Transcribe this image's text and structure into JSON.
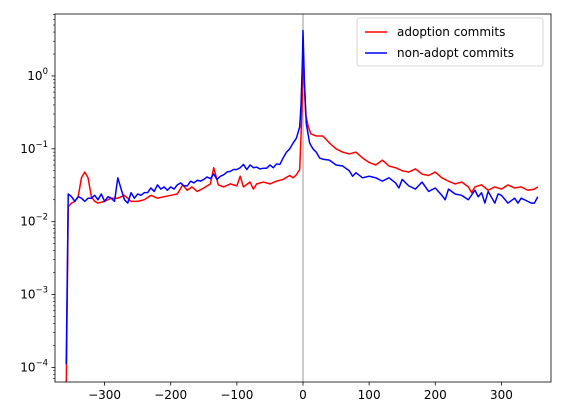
{
  "chart_data": {
    "type": "line",
    "title": "",
    "xlabel": "",
    "ylabel": "",
    "xlim": [
      -375,
      375
    ],
    "ylim_log10": [
      -4.2,
      0.85
    ],
    "yscale": "log",
    "grid": false,
    "legend_position": "top-right",
    "vertical_line_x": 0,
    "x_ticks": [
      -300,
      -200,
      -100,
      0,
      100,
      200,
      300
    ],
    "x_tick_labels": [
      "−300",
      "−200",
      "−100",
      "0",
      "100",
      "200",
      "300"
    ],
    "y_ticks_log10": [
      -4,
      -3,
      -2,
      -1,
      0
    ],
    "y_tick_labels": [
      {
        "base": "10",
        "exp": "−4"
      },
      {
        "base": "10",
        "exp": "−3"
      },
      {
        "base": "10",
        "exp": "−2"
      },
      {
        "base": "10",
        "exp": "−1"
      },
      {
        "base": "10",
        "exp": "0"
      }
    ],
    "series": [
      {
        "name": "adoption commits",
        "color": "#ff0000",
        "points": [
          [
            -358,
            5e-05
          ],
          [
            -355,
            0.016
          ],
          [
            -350,
            0.018
          ],
          [
            -345,
            0.019
          ],
          [
            -340,
            0.022
          ],
          [
            -335,
            0.04
          ],
          [
            -330,
            0.048
          ],
          [
            -325,
            0.04
          ],
          [
            -320,
            0.022
          ],
          [
            -315,
            0.019
          ],
          [
            -310,
            0.018
          ],
          [
            -300,
            0.019
          ],
          [
            -290,
            0.021
          ],
          [
            -280,
            0.021
          ],
          [
            -270,
            0.023
          ],
          [
            -260,
            0.019
          ],
          [
            -250,
            0.019
          ],
          [
            -240,
            0.02
          ],
          [
            -230,
            0.023
          ],
          [
            -220,
            0.021
          ],
          [
            -210,
            0.022
          ],
          [
            -200,
            0.023
          ],
          [
            -190,
            0.024
          ],
          [
            -182,
            0.032
          ],
          [
            -175,
            0.027
          ],
          [
            -168,
            0.03
          ],
          [
            -160,
            0.026
          ],
          [
            -150,
            0.029
          ],
          [
            -140,
            0.033
          ],
          [
            -135,
            0.055
          ],
          [
            -128,
            0.032
          ],
          [
            -120,
            0.03
          ],
          [
            -110,
            0.033
          ],
          [
            -100,
            0.031
          ],
          [
            -95,
            0.042
          ],
          [
            -90,
            0.03
          ],
          [
            -80,
            0.035
          ],
          [
            -75,
            0.028
          ],
          [
            -70,
            0.033
          ],
          [
            -60,
            0.035
          ],
          [
            -50,
            0.033
          ],
          [
            -40,
            0.036
          ],
          [
            -30,
            0.038
          ],
          [
            -20,
            0.043
          ],
          [
            -15,
            0.04
          ],
          [
            -10,
            0.044
          ],
          [
            -5,
            0.052
          ],
          [
            -3,
            0.15
          ],
          [
            -1,
            0.6
          ],
          [
            0,
            2.8
          ],
          [
            2,
            0.8
          ],
          [
            4,
            0.3
          ],
          [
            8,
            0.2
          ],
          [
            12,
            0.16
          ],
          [
            20,
            0.15
          ],
          [
            30,
            0.15
          ],
          [
            40,
            0.12
          ],
          [
            50,
            0.1
          ],
          [
            60,
            0.09
          ],
          [
            70,
            0.085
          ],
          [
            80,
            0.09
          ],
          [
            90,
            0.075
          ],
          [
            100,
            0.065
          ],
          [
            110,
            0.06
          ],
          [
            120,
            0.07
          ],
          [
            130,
            0.058
          ],
          [
            140,
            0.055
          ],
          [
            150,
            0.05
          ],
          [
            160,
            0.048
          ],
          [
            170,
            0.053
          ],
          [
            180,
            0.045
          ],
          [
            190,
            0.043
          ],
          [
            200,
            0.048
          ],
          [
            210,
            0.04
          ],
          [
            220,
            0.036
          ],
          [
            230,
            0.033
          ],
          [
            240,
            0.035
          ],
          [
            250,
            0.03
          ],
          [
            255,
            0.025
          ],
          [
            260,
            0.03
          ],
          [
            270,
            0.032
          ],
          [
            280,
            0.027
          ],
          [
            290,
            0.03
          ],
          [
            300,
            0.028
          ],
          [
            310,
            0.032
          ],
          [
            320,
            0.029
          ],
          [
            330,
            0.03
          ],
          [
            340,
            0.027
          ],
          [
            350,
            0.028
          ],
          [
            355,
            0.03
          ]
        ]
      },
      {
        "name": "non-adopt commits",
        "color": "#0000ff",
        "points": [
          [
            -358,
            0.00011
          ],
          [
            -355,
            0.024
          ],
          [
            -350,
            0.022
          ],
          [
            -345,
            0.019
          ],
          [
            -340,
            0.022
          ],
          [
            -335,
            0.021
          ],
          [
            -330,
            0.019
          ],
          [
            -325,
            0.021
          ],
          [
            -320,
            0.021
          ],
          [
            -315,
            0.023
          ],
          [
            -310,
            0.02
          ],
          [
            -305,
            0.024
          ],
          [
            -300,
            0.019
          ],
          [
            -295,
            0.022
          ],
          [
            -290,
            0.021
          ],
          [
            -285,
            0.019
          ],
          [
            -280,
            0.04
          ],
          [
            -275,
            0.028
          ],
          [
            -270,
            0.02
          ],
          [
            -265,
            0.018
          ],
          [
            -260,
            0.025
          ],
          [
            -255,
            0.021
          ],
          [
            -250,
            0.024
          ],
          [
            -245,
            0.023
          ],
          [
            -240,
            0.025
          ],
          [
            -235,
            0.025
          ],
          [
            -230,
            0.029
          ],
          [
            -225,
            0.026
          ],
          [
            -220,
            0.032
          ],
          [
            -215,
            0.028
          ],
          [
            -210,
            0.03
          ],
          [
            -205,
            0.027
          ],
          [
            -200,
            0.03
          ],
          [
            -195,
            0.028
          ],
          [
            -190,
            0.032
          ],
          [
            -185,
            0.034
          ],
          [
            -180,
            0.031
          ],
          [
            -175,
            0.031
          ],
          [
            -170,
            0.036
          ],
          [
            -165,
            0.034
          ],
          [
            -160,
            0.037
          ],
          [
            -155,
            0.036
          ],
          [
            -150,
            0.038
          ],
          [
            -145,
            0.041
          ],
          [
            -140,
            0.039
          ],
          [
            -135,
            0.045
          ],
          [
            -130,
            0.038
          ],
          [
            -125,
            0.042
          ],
          [
            -120,
            0.044
          ],
          [
            -115,
            0.048
          ],
          [
            -110,
            0.049
          ],
          [
            -105,
            0.052
          ],
          [
            -100,
            0.052
          ],
          [
            -95,
            0.055
          ],
          [
            -90,
            0.061
          ],
          [
            -85,
            0.052
          ],
          [
            -80,
            0.06
          ],
          [
            -75,
            0.055
          ],
          [
            -70,
            0.056
          ],
          [
            -65,
            0.053
          ],
          [
            -60,
            0.054
          ],
          [
            -55,
            0.054
          ],
          [
            -50,
            0.06
          ],
          [
            -45,
            0.055
          ],
          [
            -40,
            0.062
          ],
          [
            -35,
            0.061
          ],
          [
            -30,
            0.075
          ],
          [
            -25,
            0.09
          ],
          [
            -20,
            0.1
          ],
          [
            -15,
            0.12
          ],
          [
            -10,
            0.14
          ],
          [
            -5,
            0.2
          ],
          [
            -3,
            0.4
          ],
          [
            -1,
            1.5
          ],
          [
            0,
            4.2
          ],
          [
            2,
            0.9
          ],
          [
            5,
            0.22
          ],
          [
            10,
            0.12
          ],
          [
            15,
            0.1
          ],
          [
            20,
            0.09
          ],
          [
            25,
            0.075
          ],
          [
            30,
            0.072
          ],
          [
            40,
            0.07
          ],
          [
            50,
            0.06
          ],
          [
            60,
            0.058
          ],
          [
            70,
            0.05
          ],
          [
            75,
            0.042
          ],
          [
            80,
            0.047
          ],
          [
            90,
            0.04
          ],
          [
            100,
            0.042
          ],
          [
            110,
            0.04
          ],
          [
            120,
            0.036
          ],
          [
            130,
            0.04
          ],
          [
            140,
            0.034
          ],
          [
            145,
            0.029
          ],
          [
            150,
            0.038
          ],
          [
            160,
            0.031
          ],
          [
            170,
            0.028
          ],
          [
            180,
            0.035
          ],
          [
            190,
            0.026
          ],
          [
            200,
            0.029
          ],
          [
            210,
            0.023
          ],
          [
            215,
            0.02
          ],
          [
            220,
            0.028
          ],
          [
            230,
            0.024
          ],
          [
            240,
            0.023
          ],
          [
            250,
            0.02
          ],
          [
            260,
            0.027
          ],
          [
            265,
            0.022
          ],
          [
            270,
            0.025
          ],
          [
            275,
            0.018
          ],
          [
            280,
            0.026
          ],
          [
            290,
            0.018
          ],
          [
            295,
            0.024
          ],
          [
            300,
            0.023
          ],
          [
            310,
            0.018
          ],
          [
            320,
            0.021
          ],
          [
            325,
            0.018
          ],
          [
            330,
            0.021
          ],
          [
            340,
            0.019
          ],
          [
            345,
            0.018
          ],
          [
            350,
            0.018
          ],
          [
            355,
            0.022
          ]
        ]
      }
    ]
  }
}
